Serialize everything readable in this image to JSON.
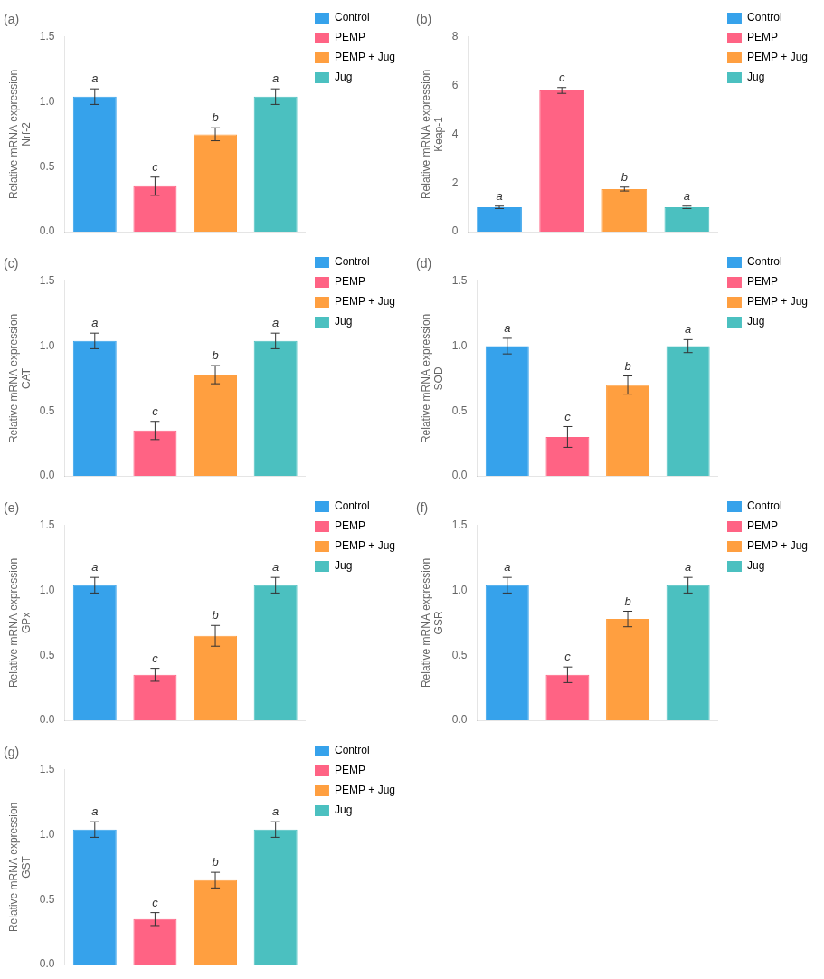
{
  "chart_data": [
    {
      "type": "bar",
      "title": "(a)",
      "ylabel": "Relative mRNA expression\nNrf-2",
      "categories": [
        "Control",
        "PEMP",
        "PEMP + Jug",
        "Jug"
      ],
      "values": [
        1.04,
        0.35,
        0.75,
        1.04
      ],
      "errors": [
        0.06,
        0.07,
        0.05,
        0.06
      ],
      "annotations": [
        "a",
        "c",
        "b",
        "a"
      ],
      "colors": [
        "#36a2eb",
        "#ff6384",
        "#ff9f40",
        "#4bc0c0"
      ],
      "ylim": [
        0,
        1.5
      ],
      "yticks": [
        {
          "value": 0,
          "label": "0.0"
        },
        0.5,
        {
          "value": 1,
          "label": "1.0"
        },
        1.5
      ],
      "grid": false,
      "legend": "right",
      "tick_labels": "y"
    },
    {
      "type": "bar",
      "title": "(b)",
      "ylabel": "Relative mRNA expression\nKeap-1",
      "categories": [
        "Control",
        "PEMP",
        "PEMP + Jug",
        "Jug"
      ],
      "values": [
        1.0,
        5.8,
        1.75,
        1.0
      ],
      "errors": [
        0.05,
        0.12,
        0.08,
        0.05
      ],
      "annotations": [
        "a",
        "c",
        "b",
        "a"
      ],
      "colors": [
        "#36a2eb",
        "#ff6384",
        "#ff9f40",
        "#4bc0c0"
      ],
      "ylim": [
        0,
        8
      ],
      "yticks": [
        0,
        2,
        4,
        6,
        8
      ],
      "grid": false,
      "legend": "right",
      "tick_labels": "y"
    },
    {
      "type": "bar",
      "title": "(c)",
      "ylabel": "Relative mRNA expression\nCAT",
      "categories": [
        "Control",
        "PEMP",
        "PEMP + Jug",
        "Jug"
      ],
      "values": [
        1.04,
        0.35,
        0.78,
        1.04
      ],
      "errors": [
        0.06,
        0.07,
        0.07,
        0.06
      ],
      "annotations": [
        "a",
        "c",
        "b",
        "a"
      ],
      "colors": [
        "#36a2eb",
        "#ff6384",
        "#ff9f40",
        "#4bc0c0"
      ],
      "ylim": [
        0,
        1.5
      ],
      "yticks": [
        {
          "value": 0,
          "label": "0.0"
        },
        0.5,
        {
          "value": 1,
          "label": "1.0"
        },
        1.5
      ],
      "grid": false,
      "legend": "right",
      "tick_labels": "y"
    },
    {
      "type": "bar",
      "title": "(d)",
      "ylabel": "Relative mRNA expression\nSOD",
      "categories": [
        "Control",
        "PEMP",
        "PEMP + Jug",
        "Jug"
      ],
      "values": [
        1.0,
        0.3,
        0.7,
        1.0
      ],
      "errors": [
        0.06,
        0.08,
        0.07,
        0.05
      ],
      "annotations": [
        "a",
        "c",
        "b",
        "a"
      ],
      "colors": [
        "#36a2eb",
        "#ff6384",
        "#ff9f40",
        "#4bc0c0"
      ],
      "ylim": [
        0,
        1.5
      ],
      "yticks": [
        {
          "value": 0,
          "label": "0.0"
        },
        0.5,
        {
          "value": 1,
          "label": "1.0"
        },
        1.5
      ],
      "grid": false,
      "legend": "right",
      "tick_labels": "y"
    },
    {
      "type": "bar",
      "title": "(e)",
      "ylabel": "Relative mRNA expression\nGPx",
      "categories": [
        "Control",
        "PEMP",
        "PEMP + Jug",
        "Jug"
      ],
      "values": [
        1.04,
        0.35,
        0.65,
        1.04
      ],
      "errors": [
        0.06,
        0.05,
        0.08,
        0.06
      ],
      "annotations": [
        "a",
        "c",
        "b",
        "a"
      ],
      "colors": [
        "#36a2eb",
        "#ff6384",
        "#ff9f40",
        "#4bc0c0"
      ],
      "ylim": [
        0,
        1.5
      ],
      "yticks": [
        {
          "value": 0,
          "label": "0.0"
        },
        0.5,
        {
          "value": 1,
          "label": "1.0"
        },
        1.5
      ],
      "grid": false,
      "legend": "right",
      "tick_labels": "y"
    },
    {
      "type": "bar",
      "title": "(f)",
      "ylabel": "Relative mRNA expression\nGSR",
      "categories": [
        "Control",
        "PEMP",
        "PEMP + Jug",
        "Jug"
      ],
      "values": [
        1.04,
        0.35,
        0.78,
        1.04
      ],
      "errors": [
        0.06,
        0.06,
        0.06,
        0.06
      ],
      "annotations": [
        "a",
        "c",
        "b",
        "a"
      ],
      "colors": [
        "#36a2eb",
        "#ff6384",
        "#ff9f40",
        "#4bc0c0"
      ],
      "ylim": [
        0,
        1.5
      ],
      "yticks": [
        {
          "value": 0,
          "label": "0.0"
        },
        0.5,
        {
          "value": 1,
          "label": "1.0"
        },
        1.5
      ],
      "grid": false,
      "legend": "right",
      "tick_labels": "y"
    },
    {
      "type": "bar",
      "title": "(g)",
      "ylabel": "Relative mRNA expression\nGST",
      "categories": [
        "Control",
        "PEMP",
        "PEMP + Jug",
        "Jug"
      ],
      "values": [
        1.04,
        0.35,
        0.65,
        1.04
      ],
      "errors": [
        0.06,
        0.05,
        0.06,
        0.06
      ],
      "annotations": [
        "a",
        "c",
        "b",
        "a"
      ],
      "colors": [
        "#36a2eb",
        "#ff6384",
        "#ff9f40",
        "#4bc0c0"
      ],
      "ylim": [
        0,
        1.5
      ],
      "yticks": [
        {
          "value": 0,
          "label": "0.0"
        },
        0.5,
        {
          "value": 1,
          "label": "1.0"
        },
        1.5
      ],
      "grid": false,
      "legend": "right",
      "tick_labels": "y"
    }
  ]
}
